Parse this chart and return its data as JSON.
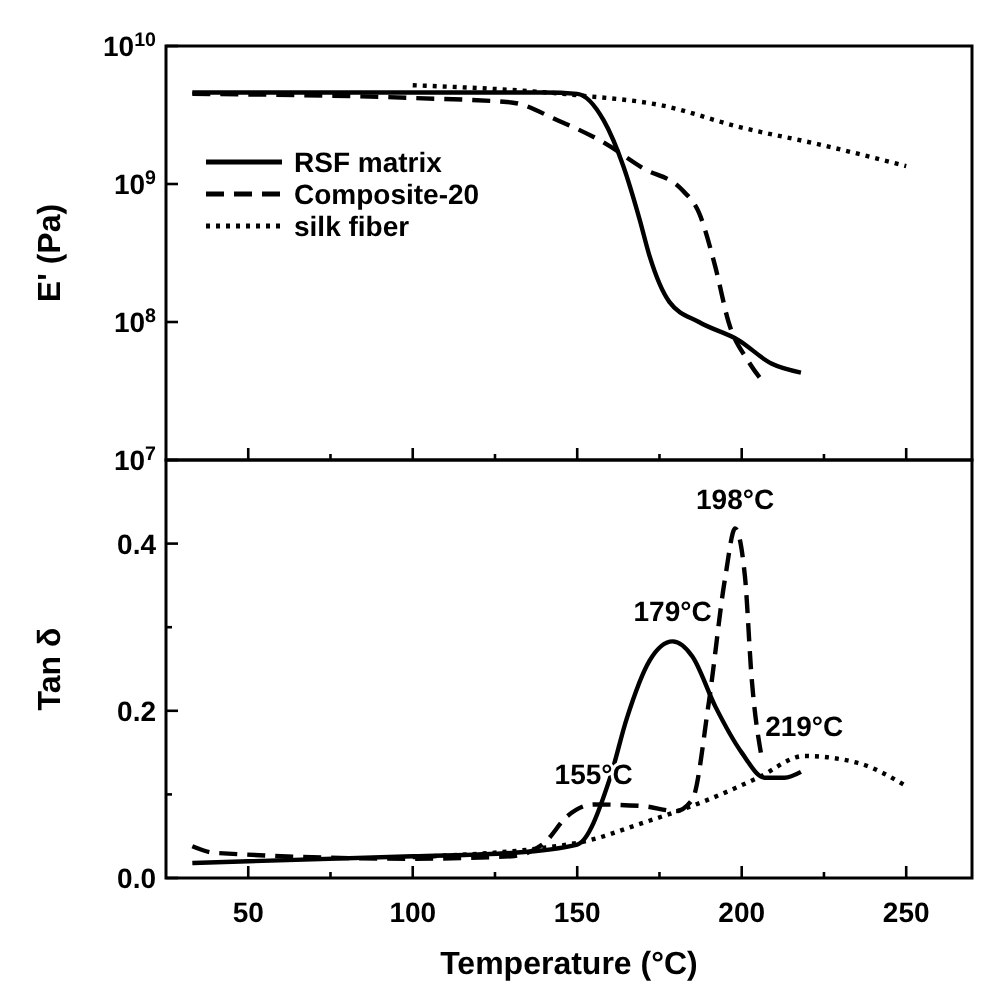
{
  "chart_data": [
    {
      "type": "line",
      "ylabel": "E' (Pa)",
      "log": "y",
      "xlim": [
        25,
        270
      ],
      "ylim": [
        10000000.0,
        10000000000.0
      ],
      "xticks": [
        50,
        {
          "value": 75,
          "label": null
        },
        100,
        {
          "value": 125,
          "label": null
        },
        150,
        {
          "value": 175,
          "label": null
        },
        200,
        {
          "value": 225,
          "label": null
        },
        250
      ],
      "yticks": [
        {
          "value": 10000000.0,
          "label": "10$^{7}$"
        },
        {
          "value": 100000000.0,
          "label": "10$^{8}$"
        },
        {
          "value": 1000000000.0,
          "label": "10$^{9}$"
        },
        {
          "value": 10000000000.0,
          "label": "10$^{10}$"
        }
      ],
      "tick_labels": "y",
      "legend": "top left",
      "series": [
        {
          "name": "RSF matrix",
          "color": "#000000",
          "line_style": "solid",
          "x": [
            33,
            100,
            140,
            150,
            158,
            164,
            169,
            172,
            178,
            187,
            199,
            209,
            218
          ],
          "values": [
            4600000000.0,
            4600000000.0,
            4600000000.0,
            4500000000.0,
            2900000000.0,
            1350000000.0,
            550000000.0,
            300000000.0,
            140000000.0,
            100000000.0,
            74000000.0,
            50000000.0,
            43000000.0
          ]
        },
        {
          "name": "Composite-20",
          "color": "#000000",
          "line_style": "dashed",
          "x": [
            33,
            100,
            130,
            144,
            158,
            170,
            182,
            187,
            192,
            196,
            202,
            206
          ],
          "values": [
            4500000000.0,
            4200000000.0,
            3900000000.0,
            2900000000.0,
            2000000000.0,
            1300000000.0,
            900000000.0,
            620000000.0,
            250000000.0,
            100000000.0,
            52000000.0,
            38000000.0
          ]
        },
        {
          "name": "silk fiber",
          "color": "#000000",
          "line_style": "dotted",
          "x": [
            100,
            150,
            176,
            199,
            225,
            250
          ],
          "values": [
            5200000000.0,
            4400000000.0,
            3700000000.0,
            2600000000.0,
            1900000000.0,
            1350000000.0
          ]
        }
      ]
    },
    {
      "type": "line",
      "xlabel": "Temperature (°C)",
      "ylabel": "Tan δ",
      "xlim": [
        25,
        270
      ],
      "ylim": [
        0,
        0.5
      ],
      "xticks": [
        50,
        {
          "value": 75,
          "label": null
        },
        100,
        {
          "value": 125,
          "label": null
        },
        150,
        {
          "value": 175,
          "label": null
        },
        200,
        {
          "value": 225,
          "label": null
        },
        250
      ],
      "yticks": [
        {
          "value": 0,
          "label": "0.0"
        },
        {
          "value": 0.1,
          "label": null
        },
        0.2,
        {
          "value": 0.3,
          "label": null
        },
        0.4
      ],
      "series": [
        {
          "color": "#000000",
          "line_style": "solid",
          "x": [
            33,
            100,
            130,
            150,
            160,
            165,
            172,
            179,
            185,
            192,
            200,
            207,
            213,
            218
          ],
          "values": [
            0.018,
            0.026,
            0.03,
            0.04,
            0.12,
            0.19,
            0.26,
            0.283,
            0.265,
            0.205,
            0.15,
            0.12,
            0.12,
            0.127
          ]
        },
        {
          "color": "#000000",
          "line_style": "dashed",
          "x": [
            33,
            40,
            100,
            130,
            140,
            147,
            155,
            170,
            180,
            185,
            190,
            195,
            198,
            201,
            203,
            206
          ],
          "values": [
            0.038,
            0.03,
            0.023,
            0.026,
            0.042,
            0.074,
            0.088,
            0.086,
            0.08,
            0.094,
            0.21,
            0.36,
            0.418,
            0.36,
            0.24,
            0.146
          ]
        },
        {
          "color": "#000000",
          "line_style": "dotted",
          "x": [
            100,
            150,
            170,
            190,
            205,
            219,
            235,
            250
          ],
          "values": [
            0.025,
            0.042,
            0.066,
            0.094,
            0.12,
            0.146,
            0.138,
            0.11
          ]
        }
      ],
      "annotations": [
        {
          "text": "155°C",
          "x": 155,
          "y": 0.088
        },
        {
          "text": "179°C",
          "x": 179,
          "y": 0.283
        },
        {
          "text": "198°C",
          "x": 198,
          "y": 0.418
        },
        {
          "text": "219°C",
          "x": 219,
          "y": 0.146
        }
      ]
    }
  ]
}
